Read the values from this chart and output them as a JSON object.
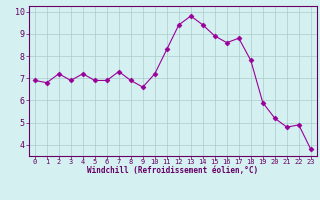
{
  "x": [
    0,
    1,
    2,
    3,
    4,
    5,
    6,
    7,
    8,
    9,
    10,
    11,
    12,
    13,
    14,
    15,
    16,
    17,
    18,
    19,
    20,
    21,
    22,
    23
  ],
  "y": [
    6.9,
    6.8,
    7.2,
    6.9,
    7.2,
    6.9,
    6.9,
    7.3,
    6.9,
    6.6,
    7.2,
    8.3,
    9.4,
    9.8,
    9.4,
    8.9,
    8.6,
    8.8,
    7.8,
    5.9,
    5.2,
    4.8,
    4.9,
    3.8
  ],
  "line_color": "#990099",
  "marker": "D",
  "marker_size": 2.5,
  "bg_color": "#d5f0f0",
  "grid_color": "#aacccc",
  "xlabel": "Windchill (Refroidissement éolien,°C)",
  "xlim": [
    -0.5,
    23.5
  ],
  "ylim": [
    3.5,
    10.25
  ],
  "yticks": [
    4,
    5,
    6,
    7,
    8,
    9,
    10
  ],
  "xticks": [
    0,
    1,
    2,
    3,
    4,
    5,
    6,
    7,
    8,
    9,
    10,
    11,
    12,
    13,
    14,
    15,
    16,
    17,
    18,
    19,
    20,
    21,
    22,
    23
  ],
  "axis_label_color": "#660066",
  "tick_color": "#660066",
  "spine_color": "#660066"
}
